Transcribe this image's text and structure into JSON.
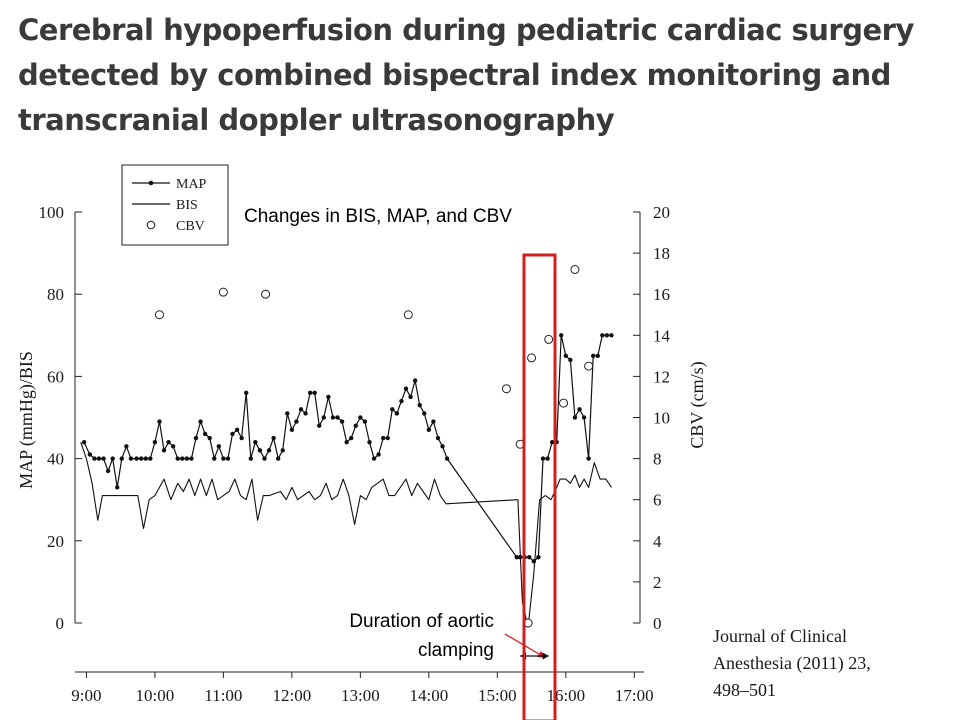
{
  "slide": {
    "title_lines": [
      "Cerebral hypoperfusion during pediatric cardiac surgery",
      "detected by combined bispectral index monitoring and",
      "transcranial doppler ultrasonography"
    ],
    "citation_lines": [
      "Journal of Clinical",
      "Anesthesia (2011) 23,",
      "498–501"
    ],
    "highlight_color": "#d21f1f"
  },
  "chart_data": {
    "type": "line",
    "title": "Changes in BIS, MAP, and CBV",
    "ylabel": "MAP (mmHg)/BIS",
    "y2label": "CBV (cm/s)",
    "ylim": [
      0,
      100
    ],
    "y2lim": [
      0,
      20
    ],
    "yticks": [
      "0",
      "20",
      "40",
      "60",
      "80",
      "100"
    ],
    "y2ticks": [
      "0",
      "2",
      "4",
      "6",
      "8",
      "10",
      "12",
      "14",
      "16",
      "18",
      "20"
    ],
    "xlim": [
      "8:50",
      "17:05"
    ],
    "xticks": [
      "9:00",
      "10:00",
      "11:00",
      "12:00",
      "13:00",
      "14:00",
      "15:00",
      "16:00",
      "17:00"
    ],
    "legend": {
      "position": "top-left",
      "entries": [
        "MAP",
        "BIS",
        "CBV"
      ]
    },
    "grid": false,
    "annotation": {
      "lines": [
        "Duration of aortic",
        "clamping"
      ],
      "x_range": [
        "15:20",
        "15:45"
      ],
      "color": "#d21f1f"
    },
    "series": [
      {
        "name": "MAP",
        "axis": "left",
        "style": "line-with-dots",
        "points": [
          [
            "8:58",
            44
          ],
          [
            "9:03",
            41
          ],
          [
            "9:07",
            40
          ],
          [
            "9:11",
            40
          ],
          [
            "9:15",
            40
          ],
          [
            "9:19",
            37
          ],
          [
            "9:23",
            40
          ],
          [
            "9:27",
            33
          ],
          [
            "9:31",
            40
          ],
          [
            "9:35",
            43
          ],
          [
            "9:39",
            40
          ],
          [
            "9:44",
            40
          ],
          [
            "9:48",
            40
          ],
          [
            "9:52",
            40
          ],
          [
            "9:56",
            40
          ],
          [
            "10:00",
            44
          ],
          [
            "10:04",
            49
          ],
          [
            "10:08",
            42
          ],
          [
            "10:12",
            44
          ],
          [
            "10:16",
            43
          ],
          [
            "10:20",
            40
          ],
          [
            "10:24",
            40
          ],
          [
            "10:28",
            40
          ],
          [
            "10:32",
            40
          ],
          [
            "10:36",
            45
          ],
          [
            "10:40",
            49
          ],
          [
            "10:44",
            46
          ],
          [
            "10:48",
            45
          ],
          [
            "10:52",
            40
          ],
          [
            "10:56",
            43
          ],
          [
            "11:00",
            40
          ],
          [
            "11:04",
            40
          ],
          [
            "11:08",
            46
          ],
          [
            "11:12",
            47
          ],
          [
            "11:16",
            45
          ],
          [
            "11:20",
            56
          ],
          [
            "11:24",
            40
          ],
          [
            "11:28",
            44
          ],
          [
            "11:32",
            42
          ],
          [
            "11:36",
            40
          ],
          [
            "11:40",
            42
          ],
          [
            "11:44",
            45
          ],
          [
            "11:48",
            40
          ],
          [
            "11:52",
            42
          ],
          [
            "11:56",
            51
          ],
          [
            "12:00",
            47
          ],
          [
            "12:04",
            49
          ],
          [
            "12:08",
            52
          ],
          [
            "12:12",
            51
          ],
          [
            "12:16",
            56
          ],
          [
            "12:20",
            56
          ],
          [
            "12:24",
            48
          ],
          [
            "12:28",
            50
          ],
          [
            "12:32",
            55
          ],
          [
            "12:36",
            50
          ],
          [
            "12:40",
            50
          ],
          [
            "12:44",
            49
          ],
          [
            "12:48",
            44
          ],
          [
            "12:52",
            45
          ],
          [
            "12:56",
            48
          ],
          [
            "13:00",
            50
          ],
          [
            "13:04",
            49
          ],
          [
            "13:08",
            44
          ],
          [
            "13:12",
            40
          ],
          [
            "13:16",
            41
          ],
          [
            "13:20",
            45
          ],
          [
            "13:24",
            45
          ],
          [
            "13:28",
            52
          ],
          [
            "13:32",
            51
          ],
          [
            "13:36",
            54
          ],
          [
            "13:40",
            57
          ],
          [
            "13:44",
            55
          ],
          [
            "13:48",
            59
          ],
          [
            "13:52",
            53
          ],
          [
            "13:56",
            51
          ],
          [
            "14:00",
            47
          ],
          [
            "14:04",
            49
          ],
          [
            "14:08",
            45
          ],
          [
            "14:12",
            43
          ],
          [
            "14:16",
            40
          ],
          [
            "15:17",
            16
          ],
          [
            "15:20",
            16
          ],
          [
            "15:24",
            16
          ],
          [
            "15:28",
            16
          ],
          [
            "15:32",
            15
          ],
          [
            "15:36",
            16
          ],
          [
            "15:40",
            40
          ],
          [
            "15:44",
            40
          ],
          [
            "15:48",
            44
          ],
          [
            "15:52",
            44
          ],
          [
            "15:56",
            70
          ],
          [
            "16:00",
            65
          ],
          [
            "16:04",
            64
          ],
          [
            "16:08",
            50
          ],
          [
            "16:12",
            52
          ],
          [
            "16:16",
            50
          ],
          [
            "16:20",
            40
          ],
          [
            "16:24",
            65
          ],
          [
            "16:28",
            65
          ],
          [
            "16:32",
            70
          ],
          [
            "16:36",
            70
          ],
          [
            "16:40",
            70
          ]
        ]
      },
      {
        "name": "BIS",
        "axis": "left",
        "style": "line",
        "points": [
          [
            "8:55",
            44
          ],
          [
            "9:00",
            40
          ],
          [
            "9:05",
            34
          ],
          [
            "9:10",
            25
          ],
          [
            "9:14",
            31
          ],
          [
            "9:20",
            31
          ],
          [
            "9:30",
            31
          ],
          [
            "9:40",
            31
          ],
          [
            "9:45",
            31
          ],
          [
            "9:50",
            23
          ],
          [
            "9:55",
            30
          ],
          [
            "10:00",
            31
          ],
          [
            "10:08",
            35
          ],
          [
            "10:14",
            30
          ],
          [
            "10:20",
            34
          ],
          [
            "10:25",
            32
          ],
          [
            "10:30",
            35
          ],
          [
            "10:35",
            31
          ],
          [
            "10:40",
            35
          ],
          [
            "10:45",
            31
          ],
          [
            "10:50",
            35
          ],
          [
            "10:55",
            30
          ],
          [
            "11:00",
            31
          ],
          [
            "11:05",
            32
          ],
          [
            "11:10",
            35
          ],
          [
            "11:15",
            31
          ],
          [
            "11:20",
            30
          ],
          [
            "11:25",
            35
          ],
          [
            "11:30",
            25
          ],
          [
            "11:35",
            31
          ],
          [
            "11:40",
            31
          ],
          [
            "11:50",
            32
          ],
          [
            "11:55",
            30
          ],
          [
            "12:00",
            33
          ],
          [
            "12:05",
            30
          ],
          [
            "12:10",
            31
          ],
          [
            "12:15",
            32
          ],
          [
            "12:20",
            30
          ],
          [
            "12:25",
            31
          ],
          [
            "12:30",
            34
          ],
          [
            "12:35",
            30
          ],
          [
            "12:40",
            31
          ],
          [
            "12:45",
            35
          ],
          [
            "12:50",
            31
          ],
          [
            "12:55",
            24
          ],
          [
            "13:00",
            31
          ],
          [
            "13:05",
            30
          ],
          [
            "13:10",
            33
          ],
          [
            "13:15",
            34
          ],
          [
            "13:20",
            35
          ],
          [
            "13:25",
            31
          ],
          [
            "13:30",
            31
          ],
          [
            "13:35",
            33
          ],
          [
            "13:40",
            35
          ],
          [
            "13:45",
            31
          ],
          [
            "13:50",
            34
          ],
          [
            "13:55",
            32
          ],
          [
            "14:00",
            30
          ],
          [
            "14:05",
            35
          ],
          [
            "14:10",
            31
          ],
          [
            "14:15",
            29
          ],
          [
            "15:18",
            30
          ],
          [
            "15:22",
            5
          ],
          [
            "15:27",
            -1
          ],
          [
            "15:32",
            12
          ],
          [
            "15:37",
            30
          ],
          [
            "15:42",
            31
          ],
          [
            "15:47",
            30
          ],
          [
            "15:52",
            33
          ],
          [
            "15:55",
            35
          ],
          [
            "16:00",
            35
          ],
          [
            "16:04",
            34
          ],
          [
            "16:08",
            36
          ],
          [
            "16:12",
            33
          ],
          [
            "16:16",
            35
          ],
          [
            "16:20",
            33
          ],
          [
            "16:25",
            39
          ],
          [
            "16:30",
            35
          ],
          [
            "16:35",
            35
          ],
          [
            "16:40",
            33
          ]
        ]
      },
      {
        "name": "CBV",
        "axis": "right",
        "style": "open-circles",
        "points": [
          [
            "10:04",
            15
          ],
          [
            "11:00",
            16.1
          ],
          [
            "11:37",
            16
          ],
          [
            "13:42",
            15
          ],
          [
            "15:08",
            11.4
          ],
          [
            "15:20",
            8.7
          ],
          [
            "15:27",
            0
          ],
          [
            "15:30",
            12.9
          ],
          [
            "15:45",
            13.8
          ],
          [
            "15:58",
            10.7
          ],
          [
            "16:08",
            17.2
          ],
          [
            "16:20",
            12.5
          ]
        ]
      }
    ]
  }
}
